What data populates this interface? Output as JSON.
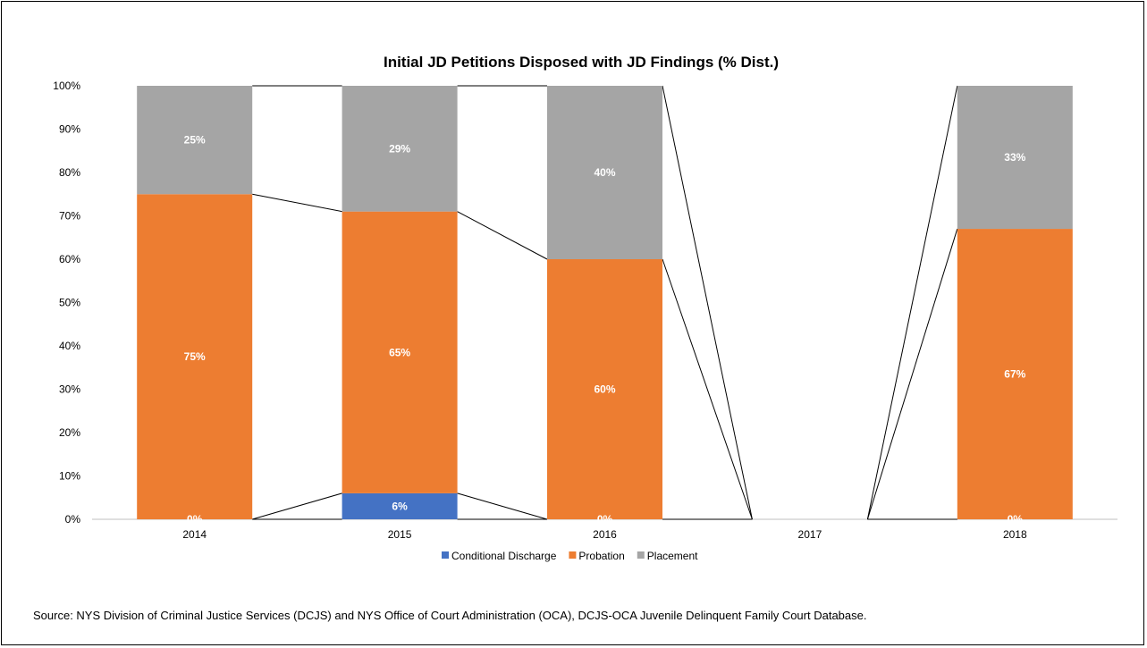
{
  "chart_data": {
    "type": "bar",
    "stacked": true,
    "percent": true,
    "title": "Initial JD Petitions Disposed with JD Findings (% Dist.)",
    "categories": [
      "2014",
      "2015",
      "2016",
      "2017",
      "2018"
    ],
    "ylim": [
      0,
      100
    ],
    "yticks": [
      0,
      10,
      20,
      30,
      40,
      50,
      60,
      70,
      80,
      90,
      100
    ],
    "ytick_labels": [
      "0%",
      "10%",
      "20%",
      "30%",
      "40%",
      "50%",
      "60%",
      "70%",
      "80%",
      "90%",
      "100%"
    ],
    "grid": false,
    "legend_position": "bottom",
    "series_lines": true,
    "series": [
      {
        "name": "Conditional Discharge",
        "color": "#4472C4",
        "values": [
          0,
          6,
          0,
          0,
          0
        ],
        "labels": [
          "0%",
          "6%",
          "0%",
          "",
          "0%"
        ]
      },
      {
        "name": "Probation",
        "color": "#ED7D31",
        "values": [
          75,
          65,
          60,
          0,
          67
        ],
        "labels": [
          "75%",
          "65%",
          "60%",
          "",
          "67%"
        ]
      },
      {
        "name": "Placement",
        "color": "#A5A5A5",
        "values": [
          25,
          29,
          40,
          0,
          33
        ],
        "labels": [
          "25%",
          "29%",
          "40%",
          "",
          "33%"
        ]
      }
    ]
  },
  "source_text": "Source: NYS Division of Criminal Justice Services (DCJS) and NYS Office of Court Administration (OCA), DCJS-OCA Juvenile Delinquent Family Court Database."
}
